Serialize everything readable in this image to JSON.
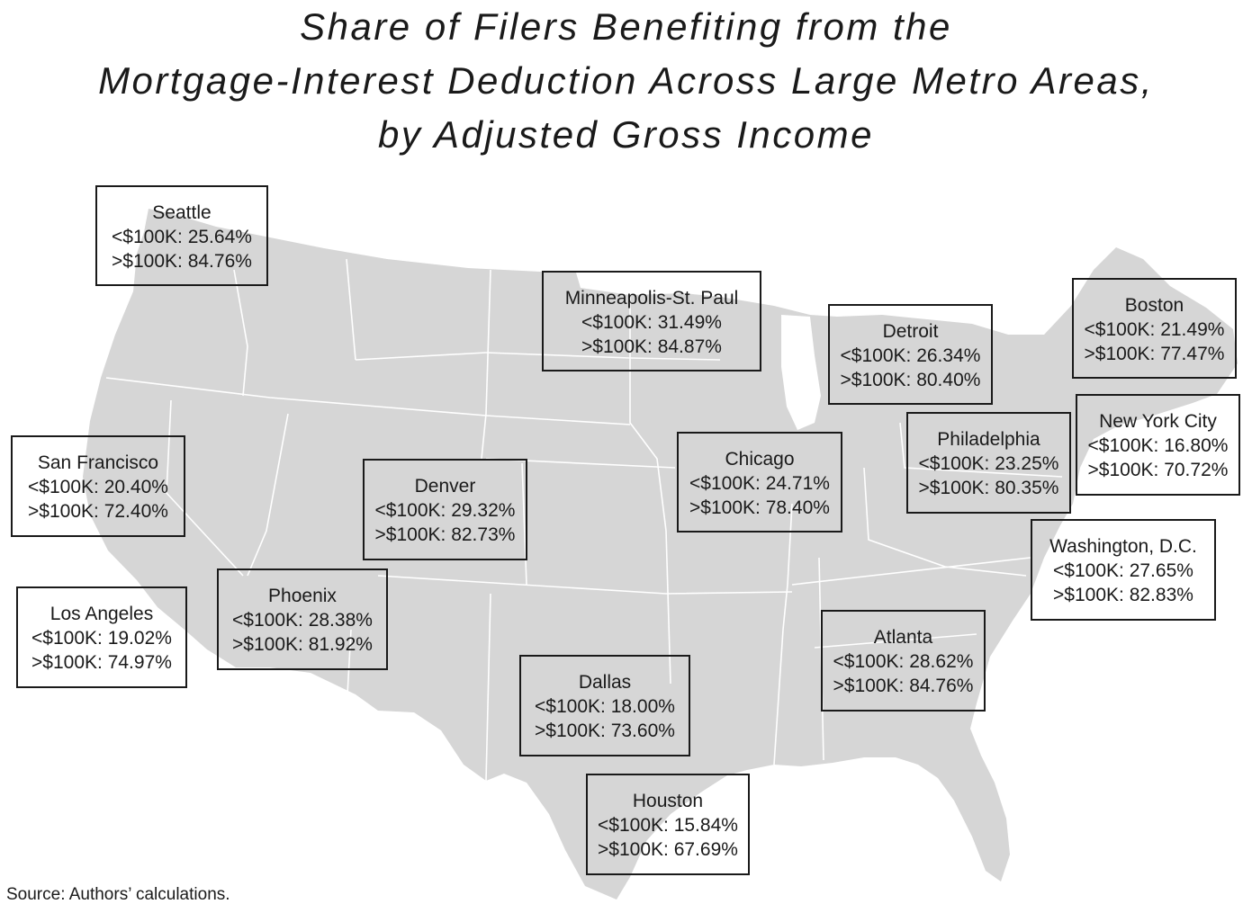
{
  "title_lines": [
    "Share of Filers Benefiting from the",
    "Mortgage-Interest Deduction Across Large Metro Areas,",
    "by Adjusted Gross Income"
  ],
  "metros": [
    {
      "name": "Seattle",
      "under_100k": "<$100K: 25.64%",
      "over_100k": ">$100K: 84.76%"
    },
    {
      "name": "Minneapolis-St. Paul",
      "under_100k": "<$100K: 31.49%",
      "over_100k": ">$100K: 84.87%"
    },
    {
      "name": "Detroit",
      "under_100k": "<$100K: 26.34%",
      "over_100k": ">$100K: 80.40%"
    },
    {
      "name": "Boston",
      "under_100k": "<$100K: 21.49%",
      "over_100k": ">$100K: 77.47%"
    },
    {
      "name": "New York City",
      "under_100k": "<$100K: 16.80%",
      "over_100k": ">$100K: 70.72%"
    },
    {
      "name": "Philadelphia",
      "under_100k": "<$100K: 23.25%",
      "over_100k": ">$100K: 80.35%"
    },
    {
      "name": "Chicago",
      "under_100k": "<$100K: 24.71%",
      "over_100k": ">$100K: 78.40%"
    },
    {
      "name": "Denver",
      "under_100k": "<$100K: 29.32%",
      "over_100k": ">$100K: 82.73%"
    },
    {
      "name": "San Francisco",
      "under_100k": "<$100K: 20.40%",
      "over_100k": ">$100K: 72.40%"
    },
    {
      "name": "Los Angeles",
      "under_100k": "<$100K: 19.02%",
      "over_100k": ">$100K: 74.97%"
    },
    {
      "name": "Phoenix",
      "under_100k": "<$100K: 28.38%",
      "over_100k": ">$100K: 81.92%"
    },
    {
      "name": "Washington, D.C.",
      "under_100k": "<$100K: 27.65%",
      "over_100k": ">$100K: 82.83%"
    },
    {
      "name": "Atlanta",
      "under_100k": "<$100K: 28.62%",
      "over_100k": ">$100K: 84.76%"
    },
    {
      "name": "Dallas",
      "under_100k": "<$100K: 18.00%",
      "over_100k": ">$100K: 73.60%"
    },
    {
      "name": "Houston",
      "under_100k": "<$100K: 15.84%",
      "over_100k": ">$100K: 67.69%"
    }
  ],
  "source": "Source: Authors’ calculations.",
  "colors": {
    "land": "#d6d6d6",
    "state_border": "#ffffff",
    "text": "#1a1a1a",
    "box_border": "#1a1a1a"
  }
}
